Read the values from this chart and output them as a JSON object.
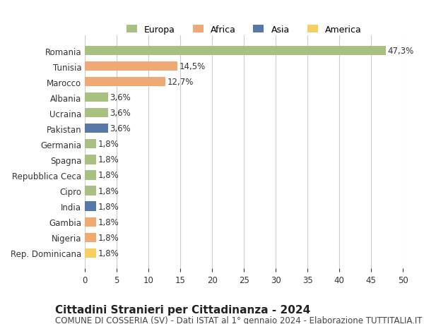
{
  "countries": [
    "Romania",
    "Tunisia",
    "Marocco",
    "Albania",
    "Ucraina",
    "Pakistan",
    "Germania",
    "Spagna",
    "Repubblica Ceca",
    "Cipro",
    "India",
    "Gambia",
    "Nigeria",
    "Rep. Dominicana"
  ],
  "values": [
    47.3,
    14.5,
    12.7,
    3.6,
    3.6,
    3.6,
    1.8,
    1.8,
    1.8,
    1.8,
    1.8,
    1.8,
    1.8,
    1.8
  ],
  "labels": [
    "47,3%",
    "14,5%",
    "12,7%",
    "3,6%",
    "3,6%",
    "3,6%",
    "1,8%",
    "1,8%",
    "1,8%",
    "1,8%",
    "1,8%",
    "1,8%",
    "1,8%",
    "1,8%"
  ],
  "colors": [
    "#a8c080",
    "#f0a875",
    "#f0a875",
    "#a8c080",
    "#a8c080",
    "#5878a8",
    "#a8c080",
    "#a8c080",
    "#a8c080",
    "#a8c080",
    "#5878a8",
    "#f0a875",
    "#f0a875",
    "#f5d060"
  ],
  "legend_labels": [
    "Europa",
    "Africa",
    "Asia",
    "America"
  ],
  "legend_colors": [
    "#a8c080",
    "#f0a875",
    "#5878a8",
    "#f5d060"
  ],
  "xlim": [
    0,
    50
  ],
  "xticks": [
    0,
    5,
    10,
    15,
    20,
    25,
    30,
    35,
    40,
    45,
    50
  ],
  "title": "Cittadini Stranieri per Cittadinanza - 2024",
  "subtitle": "COMUNE DI COSSERIA (SV) - Dati ISTAT al 1° gennaio 2024 - Elaborazione TUTTITALIA.IT",
  "bg_color": "#ffffff",
  "grid_color": "#cccccc",
  "bar_height": 0.6,
  "label_fontsize": 8.5,
  "tick_fontsize": 8.5,
  "title_fontsize": 11,
  "subtitle_fontsize": 8.5
}
